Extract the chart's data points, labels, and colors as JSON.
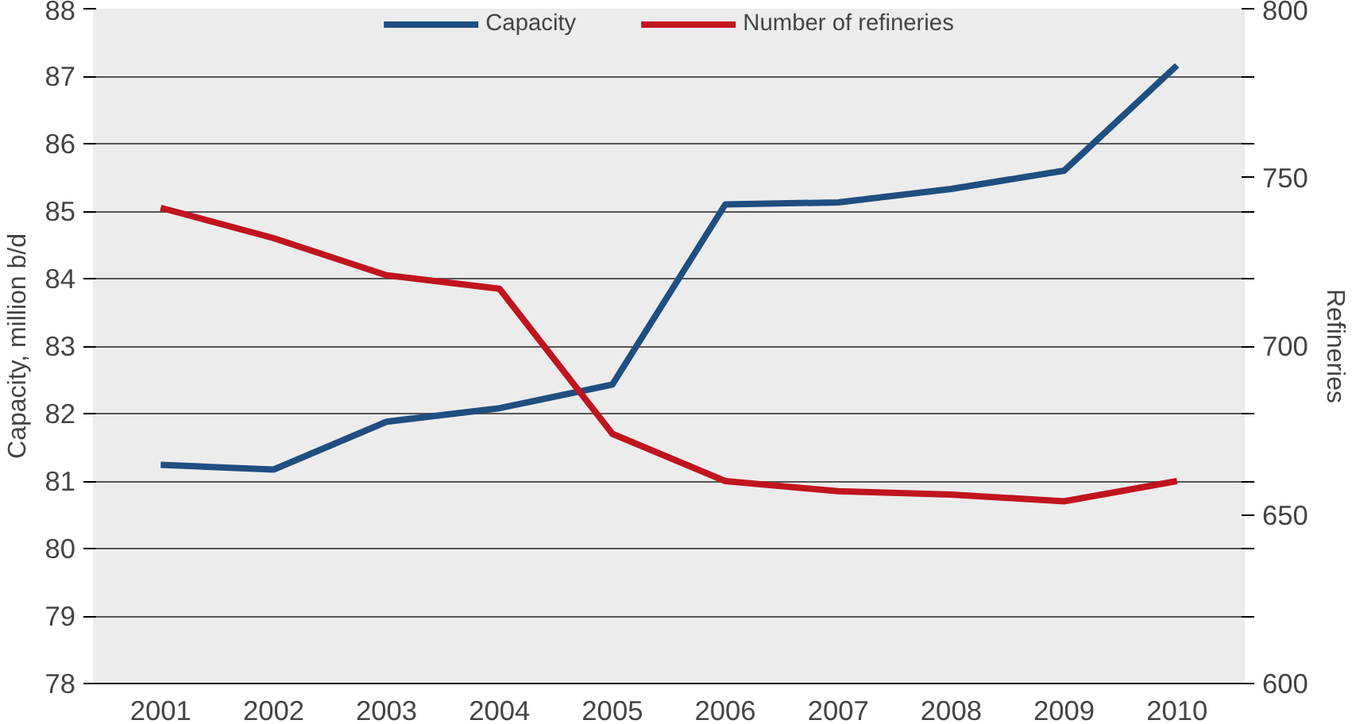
{
  "chart_data": {
    "type": "line",
    "ylabel": "Capacity, million b/d",
    "y2label": "Refineries",
    "categories": [
      "2001",
      "2002",
      "2003",
      "2004",
      "2005",
      "2006",
      "2007",
      "2008",
      "2009",
      "2010"
    ],
    "series": [
      {
        "name": "Capacity",
        "color": "#1f4e80",
        "values": [
          81.24,
          81.17,
          81.88,
          82.08,
          82.43,
          85.1,
          85.13,
          85.33,
          85.6,
          87.16
        ]
      },
      {
        "name": "Number of refineries",
        "color": "#c0141e",
        "axis": "y2",
        "values": [
          741,
          732,
          721,
          717,
          674,
          660,
          657,
          656,
          654,
          660
        ]
      }
    ],
    "ylim": [
      78,
      88
    ],
    "yticks": [
      78,
      79,
      80,
      81,
      82,
      83,
      84,
      85,
      86,
      87,
      88
    ],
    "y2lim": [
      600,
      800
    ],
    "y2ticks": [
      600,
      {
        "value": 620,
        "label": null
      },
      {
        "value": 640,
        "label": null
      },
      650,
      {
        "value": 660,
        "label": null
      },
      {
        "value": 680,
        "label": null
      },
      700,
      {
        "value": 720,
        "label": null
      },
      {
        "value": 740,
        "label": null
      },
      750,
      {
        "value": 760,
        "label": null
      },
      {
        "value": 780,
        "label": null
      },
      800
    ],
    "grid": "y",
    "legend": "top",
    "marker": "none",
    "line_style": "solid"
  }
}
